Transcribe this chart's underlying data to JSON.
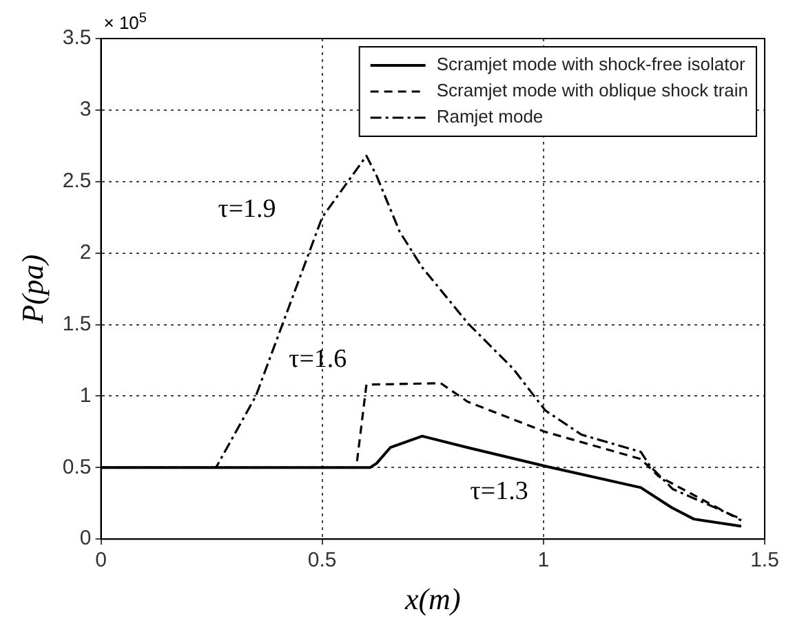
{
  "chart_data": {
    "type": "line",
    "xlabel": "x(m)",
    "ylabel": "P(pa)",
    "xlim": [
      0,
      1.5
    ],
    "xticks": [
      0,
      0.5,
      1,
      1.5
    ],
    "ylim": [
      0,
      3.5
    ],
    "yticks": [
      0,
      0.5,
      1,
      1.5,
      2,
      2.5,
      3,
      3.5
    ],
    "grid": true,
    "legend": "top right",
    "marker": "none",
    "series": [
      {
        "name": "Scramjet mode with shock-free isolator",
        "color": "#000000",
        "line_style": "solid",
        "x": [
          0,
          0.608,
          0.623,
          0.654,
          0.726,
          0.829,
          1.004,
          1.22,
          1.29,
          1.34,
          1.447
        ],
        "values": [
          0.5,
          0.5,
          0.53,
          0.64,
          0.72,
          0.64,
          0.51,
          0.36,
          0.22,
          0.14,
          0.09
        ]
      },
      {
        "name": "Scramjet mode with oblique shock train",
        "color": "#000000",
        "line_style": "dashed",
        "x": [
          0,
          0.577,
          0.6,
          0.768,
          0.829,
          1.004,
          1.22,
          1.26,
          1.447
        ],
        "values": [
          0.5,
          0.5,
          1.08,
          1.09,
          0.96,
          0.75,
          0.56,
          0.44,
          0.13
        ]
      },
      {
        "name": "Ramjet mode",
        "color": "#000000",
        "line_style": "dashdot",
        "x": [
          0,
          0.26,
          0.35,
          0.5,
          0.6,
          0.623,
          0.675,
          0.726,
          0.829,
          0.932,
          1.004,
          1.086,
          1.22,
          1.241,
          1.292,
          1.447
        ],
        "values": [
          0.5,
          0.5,
          1.0,
          2.25,
          2.68,
          2.54,
          2.15,
          1.9,
          1.51,
          1.19,
          0.9,
          0.73,
          0.61,
          0.51,
          0.35,
          0.14
        ]
      }
    ],
    "annotations": [
      "× 10$^{5}$",
      "τ=1.9",
      "τ=1.6",
      "τ=1.3"
    ]
  }
}
